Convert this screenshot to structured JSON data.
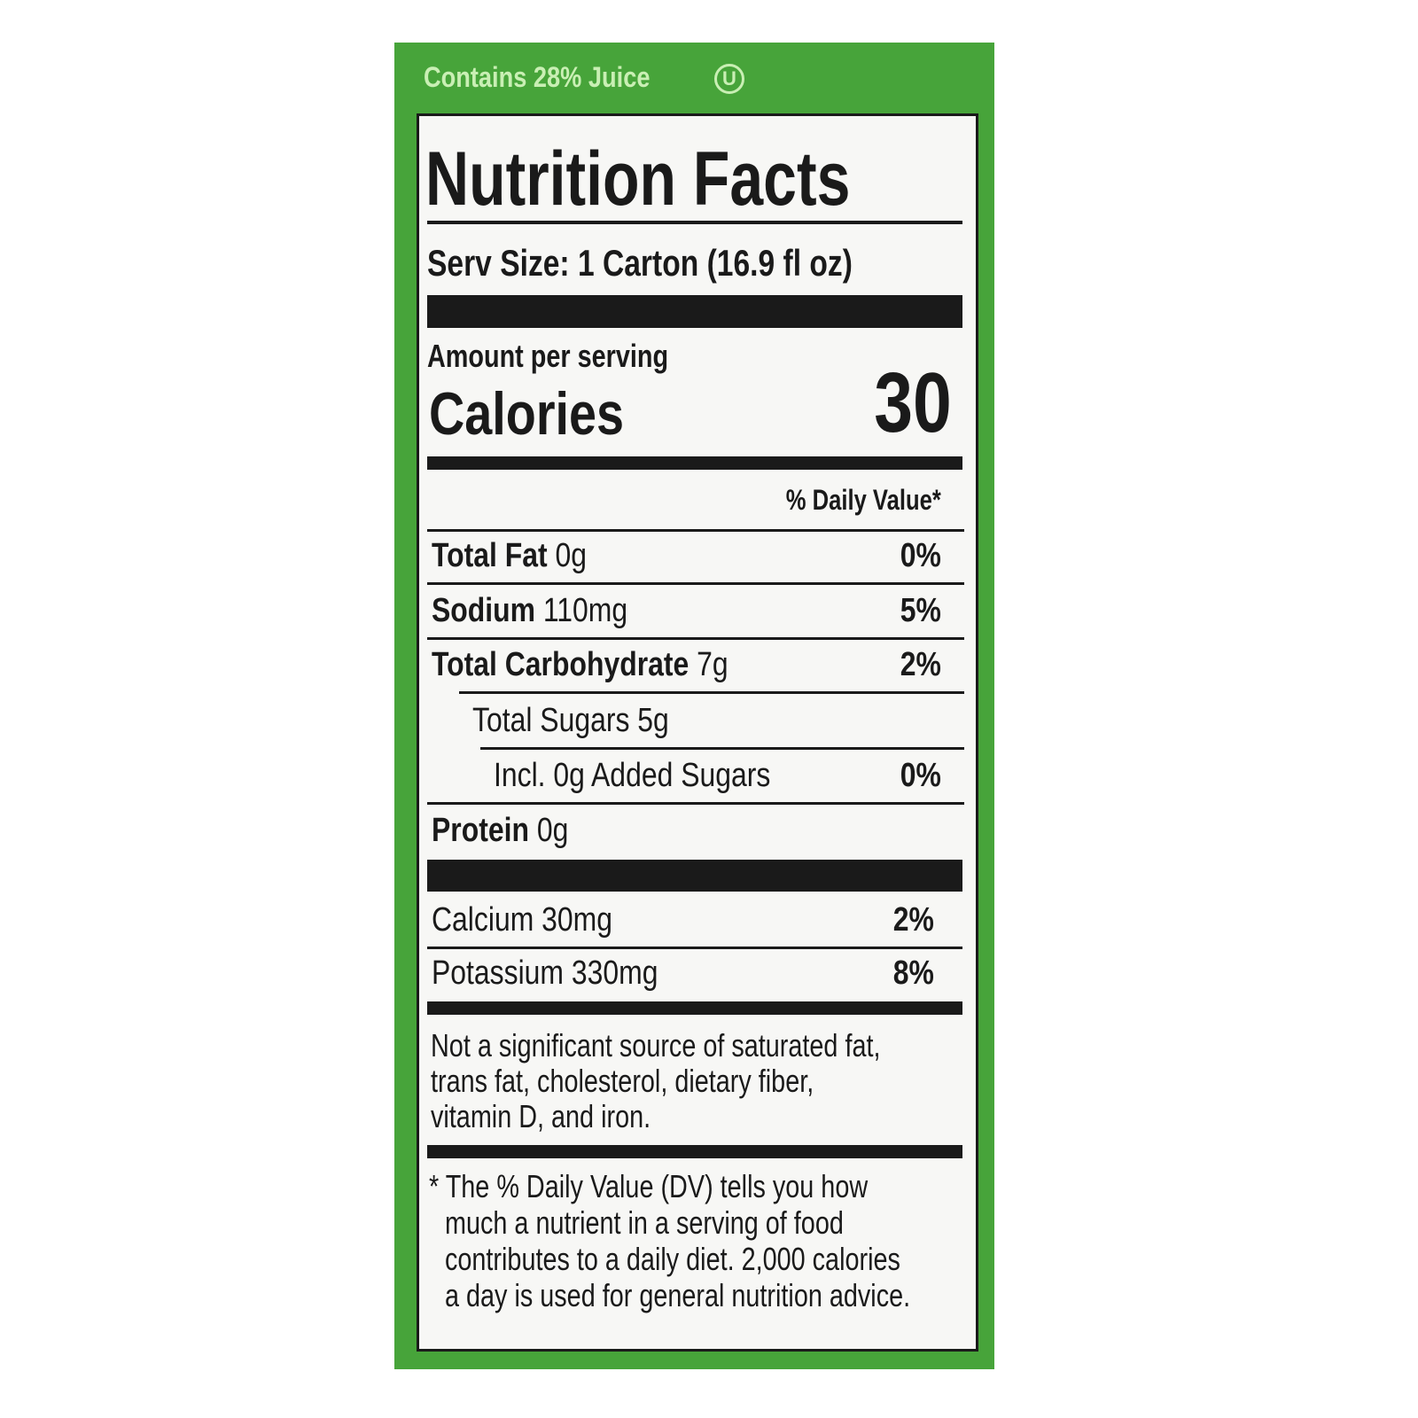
{
  "header": {
    "juice_claim": "Contains 28% Juice",
    "symbol": "U"
  },
  "label": {
    "title": "Nutrition Facts",
    "serving_size": "Serv Size: 1 Carton",
    "serving_volume": "(16.9 fl oz)",
    "amount_per_serving": "Amount per serving",
    "calories_label": "Calories",
    "calories": "30",
    "daily_value_header": "% Daily Value*",
    "nutrients": [
      {
        "name": "Total Fat",
        "amount": "0g",
        "dv": "0%"
      },
      {
        "name": "Sodium",
        "amount": "110mg",
        "dv": "5%"
      },
      {
        "name": "Total Carbohydrate",
        "amount": "7g",
        "dv": "2%"
      },
      {
        "name": "Total Sugars",
        "amount": "5g"
      },
      {
        "name": "Incl. 0g Added Sugars",
        "dv": "0%"
      },
      {
        "name": "Protein",
        "amount": "0g"
      }
    ],
    "minerals": [
      {
        "name": "Calcium",
        "amount": "30mg",
        "dv": "2%"
      },
      {
        "name": "Potassium",
        "amount": "330mg",
        "dv": "8%"
      }
    ],
    "note": [
      "Not a significant source of saturated fat,",
      "trans fat, cholesterol, dietary fiber,",
      "vitamin D, and iron."
    ],
    "footnote": [
      "* The % Daily Value (DV) tells you how",
      "much a nutrient in a serving of food",
      "contributes to a daily diet. 2,000 calories",
      "a day is used for general nutrition advice."
    ]
  }
}
